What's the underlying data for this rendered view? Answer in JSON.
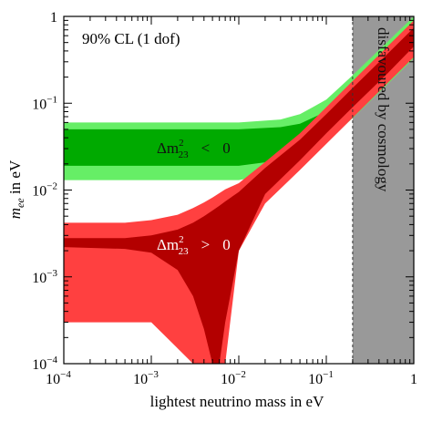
{
  "chart_data": {
    "type": "area",
    "title": "",
    "xlabel": "lightest neutrino mass in eV",
    "ylabel_base": "m",
    "ylabel_sub": "ee",
    "ylabel_suffix": " in eV",
    "xscale": "log",
    "yscale": "log",
    "xlim": [
      0.0001,
      1
    ],
    "ylim": [
      0.0001,
      1
    ],
    "x_ticks": [
      {
        "value": 0.0001,
        "base": "10",
        "exp": "−4"
      },
      {
        "value": 0.001,
        "base": "10",
        "exp": "−3"
      },
      {
        "value": 0.01,
        "base": "10",
        "exp": "−2"
      },
      {
        "value": 0.1,
        "base": "10",
        "exp": "−1"
      },
      {
        "value": 1,
        "base": "1",
        "exp": ""
      }
    ],
    "y_ticks": [
      {
        "value": 0.0001,
        "base": "10",
        "exp": "−4"
      },
      {
        "value": 0.001,
        "base": "10",
        "exp": "−3"
      },
      {
        "value": 0.01,
        "base": "10",
        "exp": "−2"
      },
      {
        "value": 0.1,
        "base": "10",
        "exp": "−1"
      },
      {
        "value": 1,
        "base": "1",
        "exp": ""
      }
    ],
    "annotations": {
      "cl": "90% CL (1 dof)",
      "cosmology": "disfavoured by cosmology",
      "inverted_label": {
        "delta": "Δm",
        "sup": "2",
        "sub": "23",
        "rel": "<",
        "rhs": "0"
      },
      "normal_label": {
        "delta": "Δm",
        "sup": "2",
        "sub": "23",
        "rel": ">",
        "rhs": "0"
      }
    },
    "cosmology_bound_x": 0.2,
    "colors": {
      "inverted_outer": "#66ee66",
      "inverted_inner": "#00aa00",
      "normal_outer": "#ff4040",
      "normal_inner": "#b30000",
      "cosmology": "#999999"
    },
    "series": [
      {
        "x": [
          0.0001,
          0.001,
          0.01,
          0.03,
          0.05,
          0.07,
          0.1,
          0.15,
          0.2,
          0.3,
          0.5,
          0.7,
          1
        ],
        "upper": [
          0.06,
          0.06,
          0.06,
          0.065,
          0.075,
          0.09,
          0.11,
          0.16,
          0.21,
          0.31,
          0.51,
          0.71,
          1.0
        ],
        "lower": [
          0.013,
          0.013,
          0.013,
          0.016,
          0.021,
          0.027,
          0.037,
          0.052,
          0.067,
          0.1,
          0.165,
          0.23,
          0.33
        ]
      },
      {
        "x": [
          0.0001,
          0.001,
          0.01,
          0.03,
          0.05,
          0.07,
          0.1,
          0.15,
          0.2,
          0.3,
          0.5,
          0.7,
          1
        ],
        "upper": [
          0.05,
          0.05,
          0.05,
          0.053,
          0.058,
          0.068,
          0.08,
          0.115,
          0.15,
          0.22,
          0.37,
          0.52,
          0.74
        ],
        "lower": [
          0.019,
          0.019,
          0.019,
          0.022,
          0.027,
          0.033,
          0.044,
          0.062,
          0.08,
          0.12,
          0.2,
          0.28,
          0.4
        ]
      },
      {
        "x": [
          0.0001,
          0.0005,
          0.001,
          0.002,
          0.003,
          0.004,
          0.005,
          0.006,
          0.007,
          0.01,
          0.02,
          0.05,
          0.1,
          0.2,
          0.5,
          1
        ],
        "upper": [
          0.0042,
          0.0042,
          0.0045,
          0.0052,
          0.0062,
          0.0072,
          0.0082,
          0.0092,
          0.0102,
          0.012,
          0.021,
          0.045,
          0.09,
          0.18,
          0.45,
          0.9
        ],
        "lower": [
          0.0003,
          0.0003,
          0.0003,
          0.00015,
          0.0001,
          0.0001,
          0.0001,
          0.0001,
          0.0001,
          0.002,
          0.007,
          0.017,
          0.034,
          0.068,
          0.17,
          0.34
        ]
      },
      {
        "x": [
          0.0001,
          0.0005,
          0.001,
          0.002,
          0.003,
          0.004,
          0.005,
          0.006,
          0.007,
          0.01,
          0.02,
          0.05,
          0.1,
          0.2,
          0.5,
          1
        ],
        "upper": [
          0.0028,
          0.0028,
          0.003,
          0.0035,
          0.0042,
          0.005,
          0.0058,
          0.0066,
          0.0074,
          0.0095,
          0.018,
          0.038,
          0.075,
          0.15,
          0.37,
          0.74
        ],
        "lower": [
          0.0022,
          0.0021,
          0.0019,
          0.0012,
          0.0006,
          0.00025,
          0.0001,
          0.0001,
          0.0003,
          0.002,
          0.009,
          0.022,
          0.045,
          0.09,
          0.22,
          0.45
        ]
      }
    ]
  }
}
